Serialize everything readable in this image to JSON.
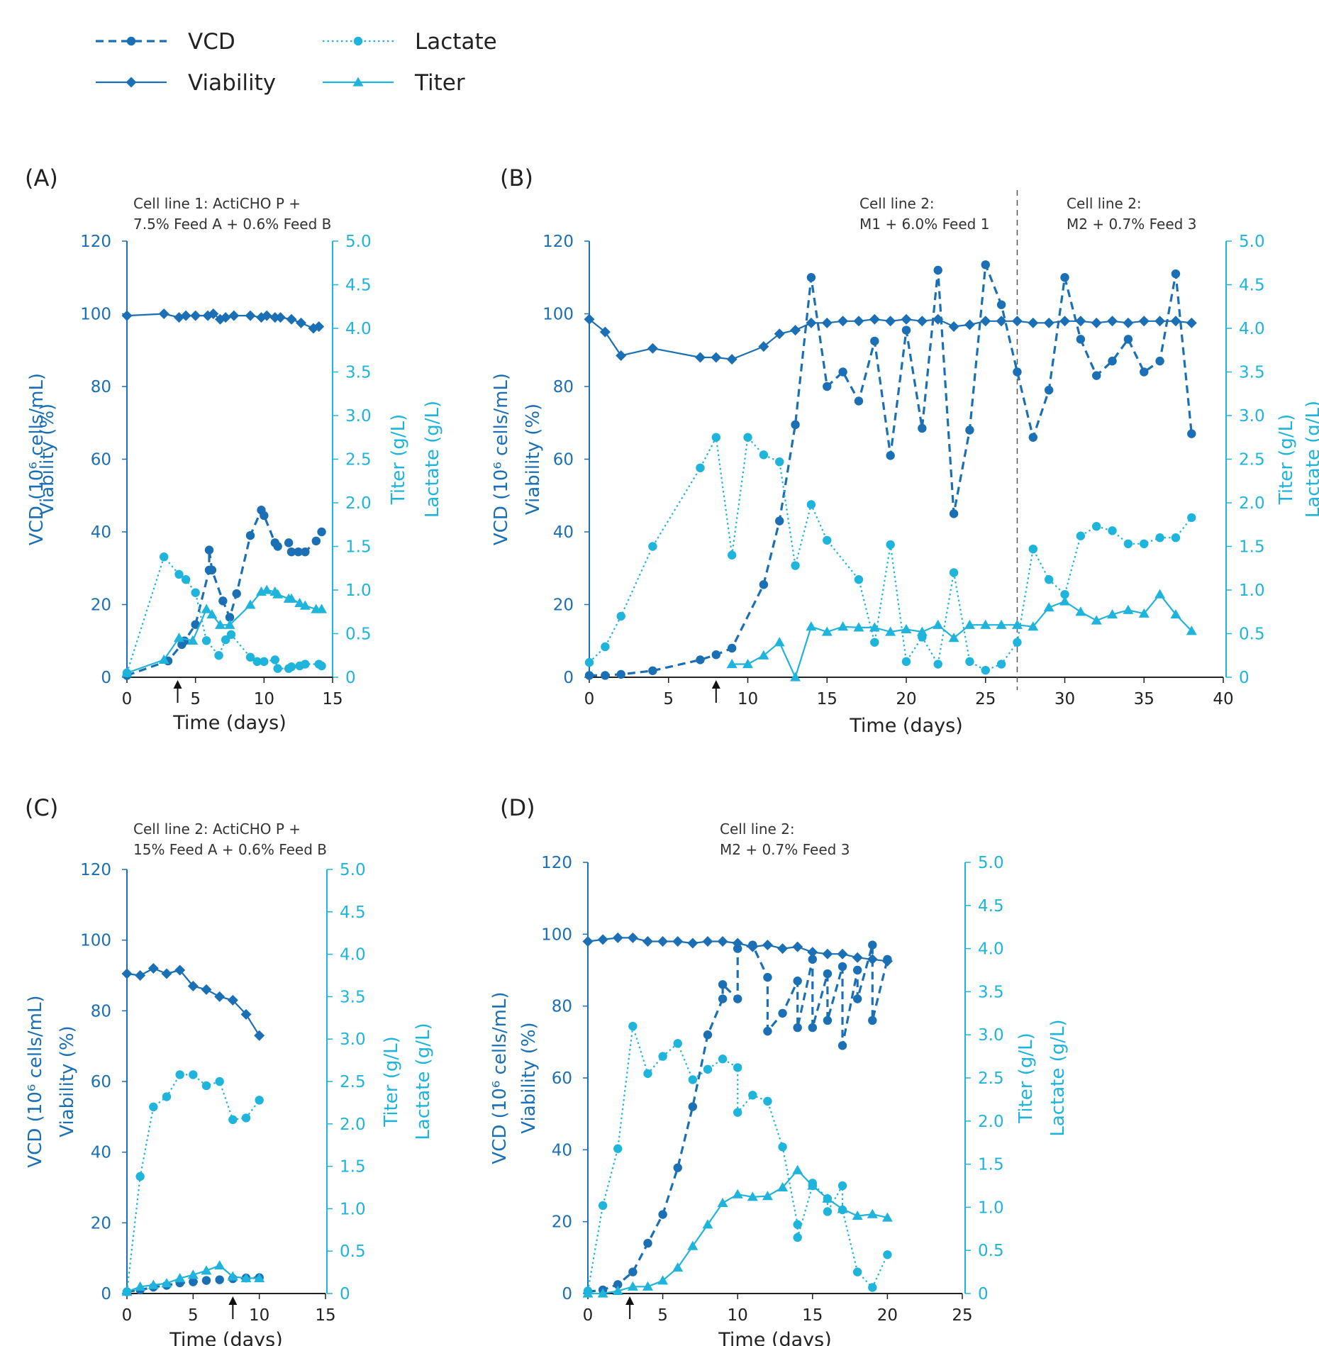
{
  "colors": {
    "dark": "#1a6fb5",
    "light": "#1fb4dc",
    "arrow": "#111111"
  },
  "legend": [
    {
      "label": "VCD",
      "style": "dashed",
      "marker": "circle",
      "color": "dark"
    },
    {
      "label": "Viability",
      "style": "solid",
      "marker": "diamond",
      "color": "dark"
    },
    {
      "label": "Lactate",
      "style": "dotted",
      "marker": "circle",
      "color": "light"
    },
    {
      "label": "Titer",
      "style": "solid",
      "marker": "triangle",
      "color": "light"
    }
  ],
  "chart_data": [
    {
      "id": "A",
      "panel_label": "(A)",
      "subtitle": [
        "Cell line 1: ActiCHO P +",
        "7.5% Feed A + 0.6% Feed B"
      ],
      "type": "line",
      "xlabel": "Time (days)",
      "ylabel_left": [
        "VCD (10⁶ cells/mL)",
        "Viability (%)"
      ],
      "ylabel_right": [
        "Titer (g/L)",
        "Lactate (g/L)"
      ],
      "xlim": [
        0,
        15
      ],
      "xticks": [
        0,
        5,
        10,
        15
      ],
      "ylim_left": [
        0,
        120
      ],
      "yticks_left": [
        0,
        20,
        40,
        60,
        80,
        100,
        120
      ],
      "ylim_right": [
        0,
        5
      ],
      "yticks_right": [
        0,
        0.5,
        1.0,
        1.5,
        2.0,
        2.5,
        3.0,
        3.5,
        4.0,
        4.5,
        5.0
      ],
      "feed_start_arrow_day": 3.7,
      "series": [
        {
          "name": "VCD",
          "axis": "left",
          "x": [
            0,
            3,
            4,
            4.2,
            5,
            6,
            6,
            6.2,
            7,
            7.5,
            8,
            9,
            9.8,
            10,
            10.8,
            11,
            11.8,
            12,
            12.5,
            13,
            13.8,
            14.2
          ],
          "y": [
            0.5,
            4.5,
            9,
            10,
            14.5,
            29.5,
            35,
            29.5,
            21,
            16.5,
            23,
            39,
            46,
            44.5,
            37,
            36,
            37,
            34.5,
            34.5,
            34.5,
            37.5,
            40
          ]
        },
        {
          "name": "Viability",
          "axis": "left",
          "x": [
            0,
            2.7,
            3.8,
            4.3,
            5,
            5.9,
            6.3,
            6.8,
            7.2,
            7.8,
            9,
            9.8,
            10.2,
            10.8,
            11.2,
            12,
            12.7,
            13.6,
            14
          ],
          "y": [
            99.5,
            100,
            99,
            99.5,
            99.5,
            99.5,
            100,
            98.5,
            99,
            99.5,
            99.5,
            99,
            99.5,
            99,
            99,
            98.5,
            97.5,
            96,
            96.5
          ]
        },
        {
          "name": "Lactate",
          "axis": "right",
          "x": [
            0,
            2.7,
            3.8,
            4.3,
            5,
            5.8,
            6.7,
            7.2,
            7.6,
            9,
            9.5,
            10,
            10.8,
            11,
            11.8,
            12,
            12.6,
            13,
            14,
            14.2
          ],
          "y": [
            0.05,
            1.38,
            1.18,
            1.12,
            0.97,
            0.42,
            0.25,
            0.43,
            0.49,
            0.23,
            0.18,
            0.18,
            0.2,
            0.1,
            0.1,
            0.12,
            0.13,
            0.15,
            0.15,
            0.13
          ]
        },
        {
          "name": "Titer",
          "axis": "right",
          "x": [
            0,
            2.7,
            3.8,
            4.8,
            5.8,
            6.2,
            6.8,
            7.5,
            9,
            9.8,
            10.2,
            10.8,
            11,
            11.8,
            12,
            12.6,
            13,
            13.8,
            14.2
          ],
          "y": [
            0.05,
            0.2,
            0.45,
            0.42,
            0.78,
            0.72,
            0.6,
            0.6,
            0.83,
            0.98,
            1.0,
            0.98,
            0.95,
            0.9,
            0.9,
            0.85,
            0.82,
            0.78,
            0.78
          ]
        }
      ]
    },
    {
      "id": "B",
      "panel_label": "(B)",
      "subtitle_left": [
        "Cell line 2:",
        "M1 + 6.0% Feed 1"
      ],
      "subtitle_right": [
        "Cell line 2:",
        "M2 + 0.7% Feed 3"
      ],
      "type": "line",
      "xlabel": "Time (days)",
      "ylabel_left": [
        "VCD (10⁶ cells/mL)",
        "Viability (%)"
      ],
      "ylabel_right": [
        "Titer (g/L)",
        "Lactate (g/L)"
      ],
      "xlim": [
        0,
        40
      ],
      "xticks": [
        0,
        5,
        10,
        15,
        20,
        25,
        30,
        35,
        40
      ],
      "ylim_left": [
        0,
        120
      ],
      "yticks_left": [
        0,
        20,
        40,
        60,
        80,
        100,
        120
      ],
      "ylim_right": [
        0,
        5
      ],
      "yticks_right": [
        0,
        0.5,
        1.0,
        1.5,
        2.0,
        2.5,
        3.0,
        3.5,
        4.0,
        4.5,
        5.0
      ],
      "feed_start_arrow_day": 8,
      "media_change_day": 27,
      "series": [
        {
          "name": "VCD",
          "axis": "left",
          "x": [
            0,
            1,
            2,
            4,
            7,
            8,
            9,
            11,
            12,
            13,
            14,
            15,
            16,
            17,
            18,
            19,
            20,
            21,
            22,
            23,
            24,
            25,
            26,
            27,
            28,
            29,
            30,
            31,
            32,
            33,
            34,
            35,
            36,
            37,
            38
          ],
          "y": [
            0.5,
            0.5,
            0.8,
            1.8,
            4.8,
            6.2,
            8,
            25.5,
            43,
            69.5,
            110,
            80,
            84,
            76,
            92.5,
            61,
            95.5,
            68.5,
            112,
            45,
            68,
            113.5,
            102.5,
            84,
            66,
            79,
            110,
            93,
            83,
            87,
            93,
            84,
            87,
            111,
            67
          ]
        },
        {
          "name": "Viability",
          "axis": "left",
          "x": [
            0,
            1,
            2,
            4,
            7,
            8,
            9,
            11,
            12,
            13,
            14,
            15,
            16,
            17,
            18,
            19,
            20,
            21,
            22,
            23,
            24,
            25,
            26,
            27,
            28,
            29,
            30,
            31,
            32,
            33,
            34,
            35,
            36,
            37,
            38
          ],
          "y": [
            98.5,
            95,
            88.5,
            90.5,
            88,
            88,
            87.5,
            91,
            94.5,
            95.5,
            97.5,
            97.5,
            98,
            98,
            98.5,
            98,
            98.5,
            98,
            98.5,
            96.5,
            97,
            98,
            98,
            98,
            97.5,
            97.5,
            98,
            98,
            97.5,
            98,
            97.5,
            98,
            98,
            98,
            97.5
          ]
        },
        {
          "name": "Lactate",
          "axis": "right",
          "x": [
            0,
            1,
            2,
            4,
            7,
            8,
            9,
            10,
            11,
            12,
            13,
            14,
            15,
            17,
            18,
            19,
            20,
            21,
            22,
            23,
            24,
            25,
            26,
            27,
            28,
            29,
            30,
            31,
            32,
            33,
            34,
            35,
            36,
            37,
            38
          ],
          "y": [
            0.17,
            0.35,
            0.7,
            1.5,
            2.4,
            2.75,
            1.4,
            2.75,
            2.55,
            2.47,
            1.28,
            1.98,
            1.57,
            1.12,
            0.4,
            1.52,
            0.18,
            0.46,
            0.15,
            1.2,
            0.18,
            0.08,
            0.15,
            0.4,
            1.47,
            1.12,
            0.95,
            1.62,
            1.73,
            1.68,
            1.53,
            1.53,
            1.6,
            1.6,
            1.83
          ]
        },
        {
          "name": "Titer",
          "axis": "right",
          "x": [
            9,
            10,
            11,
            12,
            13,
            14,
            15,
            16,
            17,
            18,
            19,
            20,
            21,
            22,
            23,
            24,
            25,
            26,
            27,
            28,
            29,
            30,
            31,
            32,
            33,
            34,
            35,
            36,
            37,
            38
          ],
          "y": [
            0.15,
            0.15,
            0.25,
            0.4,
            0,
            0.58,
            0.52,
            0.58,
            0.57,
            0.57,
            0.52,
            0.55,
            0.52,
            0.6,
            0.45,
            0.6,
            0.6,
            0.6,
            0.6,
            0.58,
            0.8,
            0.87,
            0.75,
            0.65,
            0.72,
            0.77,
            0.73,
            0.95,
            0.72,
            0.53
          ]
        }
      ]
    },
    {
      "id": "C",
      "panel_label": "(C)",
      "subtitle": [
        "Cell line 2: ActiCHO P +",
        "15% Feed A + 0.6% Feed B"
      ],
      "type": "line",
      "xlabel": "Time (days)",
      "ylabel_left": [
        "VCD (10⁶ cells/mL)",
        "Viability (%)"
      ],
      "ylabel_right": [
        "Titer (g/L)",
        "Lactate (g/L)"
      ],
      "xlim": [
        0,
        15
      ],
      "xticks": [
        0,
        5,
        10,
        15
      ],
      "ylim_left": [
        0,
        120
      ],
      "yticks_left": [
        0,
        20,
        40,
        60,
        80,
        100,
        120
      ],
      "ylim_right": [
        0,
        5
      ],
      "yticks_right": [
        0,
        0.5,
        1.0,
        1.5,
        2.0,
        2.5,
        3.0,
        3.5,
        4.0,
        4.5,
        5.0
      ],
      "feed_start_arrow_day": 8,
      "series": [
        {
          "name": "VCD",
          "axis": "left",
          "x": [
            0,
            1,
            2,
            3,
            4,
            5,
            6,
            7,
            8,
            9,
            10
          ],
          "y": [
            0.5,
            1,
            1.8,
            2.3,
            3,
            3.3,
            3.7,
            3.9,
            4.2,
            4.4,
            4.5
          ]
        },
        {
          "name": "Viability",
          "axis": "left",
          "x": [
            0,
            1,
            2,
            3,
            4,
            5,
            6,
            7,
            8,
            9,
            10
          ],
          "y": [
            90.5,
            90,
            92,
            90.5,
            91.5,
            87,
            86,
            84,
            83,
            79,
            73
          ]
        },
        {
          "name": "Lactate",
          "axis": "right",
          "x": [
            0,
            1,
            2,
            3,
            4,
            5,
            6,
            7,
            8,
            9,
            10
          ],
          "y": [
            0.02,
            1.38,
            2.2,
            2.32,
            2.58,
            2.58,
            2.45,
            2.5,
            2.05,
            2.07,
            2.28
          ]
        },
        {
          "name": "Titer",
          "axis": "right",
          "x": [
            0,
            1,
            2,
            3,
            4,
            5,
            6,
            7,
            8,
            9,
            10
          ],
          "y": [
            0.02,
            0.08,
            0.1,
            0.12,
            0.18,
            0.22,
            0.27,
            0.33,
            0.2,
            0.18,
            0.18
          ]
        }
      ]
    },
    {
      "id": "D",
      "panel_label": "(D)",
      "subtitle": [
        "Cell line 2:",
        "M2 + 0.7% Feed 3"
      ],
      "type": "line",
      "xlabel": "Time (days)",
      "ylabel_left": [
        "VCD (10⁶ cells/mL)",
        "Viability (%)"
      ],
      "ylabel_right": [
        "Titer (g/L)",
        "Lactate (g/L)"
      ],
      "xlim": [
        0,
        25
      ],
      "xticks": [
        0,
        5,
        10,
        15,
        20,
        25
      ],
      "ylim_left": [
        0,
        120
      ],
      "yticks_left": [
        0,
        20,
        40,
        60,
        80,
        100,
        120
      ],
      "ylim_right": [
        0,
        5
      ],
      "yticks_right": [
        0,
        0.5,
        1.0,
        1.5,
        2.0,
        2.5,
        3.0,
        3.5,
        4.0,
        4.5,
        5.0
      ],
      "feed_start_arrow_day": 2.8,
      "series": [
        {
          "name": "VCD",
          "axis": "left",
          "x": [
            0,
            1,
            2,
            3,
            4,
            5,
            6,
            7,
            8,
            9,
            9,
            10,
            10,
            11,
            12,
            12,
            13,
            14,
            14,
            15,
            15,
            16,
            16,
            17,
            17,
            18,
            18,
            19,
            19,
            20
          ],
          "y": [
            0.5,
            1,
            2.5,
            6,
            14,
            22,
            35,
            52,
            72,
            82,
            86,
            82,
            96,
            97,
            88,
            73,
            78,
            87,
            74,
            93,
            74,
            89,
            76,
            91,
            69,
            90,
            82,
            97,
            76,
            93
          ]
        },
        {
          "name": "Viability",
          "axis": "left",
          "x": [
            0,
            1,
            2,
            3,
            4,
            5,
            6,
            7,
            8,
            9,
            10,
            11,
            12,
            13,
            14,
            15,
            16,
            17,
            18,
            19,
            20
          ],
          "y": [
            98,
            98.5,
            99,
            99,
            98,
            98,
            98,
            97.5,
            98,
            98,
            97.5,
            96.5,
            97,
            96,
            96.5,
            95,
            94.5,
            94.5,
            93.5,
            93,
            92.5
          ]
        },
        {
          "name": "Lactate",
          "axis": "right",
          "x": [
            0,
            1,
            2,
            3,
            4,
            5,
            6,
            7,
            8,
            9,
            10,
            10,
            11,
            12,
            13,
            14,
            14,
            15,
            15,
            16,
            16,
            17,
            17,
            18,
            19,
            20
          ],
          "y": [
            0.03,
            1.02,
            1.68,
            3.1,
            2.55,
            2.75,
            2.9,
            2.48,
            2.6,
            2.72,
            2.62,
            2.1,
            2.3,
            2.23,
            1.7,
            0.8,
            0.65,
            1.25,
            1.28,
            1.1,
            0.95,
            1.25,
            0.97,
            0.25,
            0.07,
            0.45
          ]
        },
        {
          "name": "Titer",
          "axis": "right",
          "x": [
            0,
            1,
            2,
            3,
            4,
            5,
            6,
            7,
            8,
            9,
            10,
            11,
            12,
            13,
            14,
            15,
            16,
            17,
            18,
            19,
            20
          ],
          "y": [
            0,
            0,
            0.03,
            0.08,
            0.08,
            0.15,
            0.3,
            0.55,
            0.8,
            1.05,
            1.15,
            1.12,
            1.13,
            1.23,
            1.43,
            1.25,
            1.1,
            0.98,
            0.9,
            0.92,
            0.88
          ]
        }
      ]
    }
  ]
}
